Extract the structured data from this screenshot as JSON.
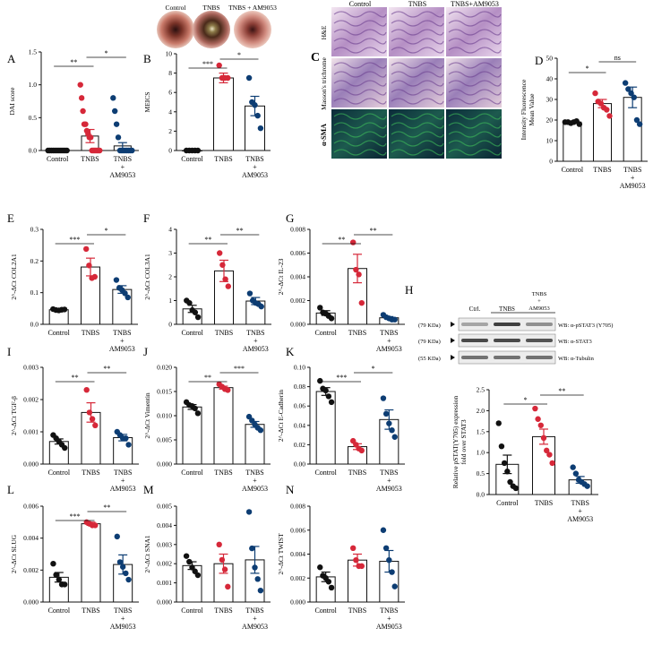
{
  "colors": {
    "control": "#111111",
    "tnbs": "#d62839",
    "am": "#0d3d73",
    "axis": "#111111"
  },
  "endoscopy": {
    "labels": [
      "Control",
      "TNBS",
      "TNBS + AM9053"
    ]
  },
  "histology": {
    "columns": [
      "Control",
      "TNBS",
      "TNBS+AM9053"
    ],
    "rows": [
      "H&E",
      "Masson's trichrome",
      "α-SMA"
    ]
  },
  "western": {
    "panel": "H",
    "lanes": [
      "Ctrl.",
      "TNBS",
      "TNBS\n+\nAM9053"
    ],
    "lane_lines": [
      "TNBS",
      "+",
      "AM9053"
    ],
    "rows": [
      {
        "kda": "(79 KDa)",
        "label": "WB: α-pSTAT3 (Y705)"
      },
      {
        "kda": "(79 KDa)",
        "label": "WB: α-STAT3"
      },
      {
        "kda": "(55 KDa)",
        "label": "WB: α-Tubulin"
      }
    ]
  },
  "chart_data": [
    {
      "id": "A",
      "type": "bar",
      "ylabel": "DAI score",
      "ylim": [
        0,
        1.5
      ],
      "yticks": [
        "0.0",
        "0.5",
        "1.0",
        "1.5"
      ],
      "categories": [
        "Control",
        "TNBS",
        "TNBS\n+\nAM9053"
      ],
      "values": [
        0.0,
        0.22,
        0.07
      ],
      "errors": [
        0.0,
        0.1,
        0.05
      ],
      "points": [
        [
          0,
          0,
          0,
          0,
          0,
          0,
          0,
          0,
          0,
          0,
          0,
          0
        ],
        [
          1.0,
          0.8,
          0.6,
          0.4,
          0.4,
          0.3,
          0.25,
          0.2,
          0.2,
          0.0,
          0.0,
          0.0,
          0.0,
          0.0,
          0.0,
          0.0
        ],
        [
          0.8,
          0.6,
          0.4,
          0.2,
          0.0,
          0.0,
          0.0,
          0.0,
          0.0,
          0.0,
          0.0,
          0.0
        ]
      ],
      "sig": [
        {
          "from": 0,
          "to": 1,
          "label": "**"
        },
        {
          "from": 1,
          "to": 2,
          "label": "*"
        }
      ]
    },
    {
      "id": "B",
      "type": "bar",
      "ylabel": "MEICS",
      "ylim": [
        0,
        10
      ],
      "yticks": [
        "0",
        "2",
        "4",
        "6",
        "8",
        "10"
      ],
      "categories": [
        "Control",
        "TNBS",
        "TNBS\n+\nAM9053"
      ],
      "values": [
        0,
        7.5,
        4.6
      ],
      "errors": [
        0,
        0.5,
        1.0
      ],
      "points": [
        [
          0,
          0,
          0,
          0,
          0
        ],
        [
          8.8,
          7.5,
          7.5,
          7.5
        ],
        [
          7.5,
          5.0,
          4.7,
          3.6,
          2.3
        ]
      ],
      "sig": [
        {
          "from": 0,
          "to": 1,
          "label": "***"
        },
        {
          "from": 1,
          "to": 2,
          "label": "*"
        }
      ]
    },
    {
      "id": "D",
      "type": "bar",
      "ylabel": "Intensity Fluorescence\nMean Value",
      "ylim": [
        0,
        50
      ],
      "yticks": [
        "0",
        "10",
        "20",
        "30",
        "40",
        "50"
      ],
      "categories": [
        "Control",
        "TNBS",
        "TNBS\n+\nAM9053"
      ],
      "values": [
        19,
        28,
        31
      ],
      "errors": [
        0.5,
        2,
        5
      ],
      "points": [
        [
          19,
          19,
          18.5,
          19,
          19.5,
          18
        ],
        [
          33,
          29,
          28,
          26,
          25,
          22
        ],
        [
          38,
          35,
          33,
          31,
          20,
          18
        ]
      ],
      "sig": [
        {
          "from": 0,
          "to": 1,
          "label": "*"
        },
        {
          "from": 1,
          "to": 2,
          "label": "ns"
        }
      ]
    },
    {
      "id": "E",
      "type": "bar",
      "ylabel": "2^-ΔCt COL2A1",
      "ylim": [
        0,
        0.3
      ],
      "yticks": [
        "0.0",
        "0.1",
        "0.2",
        "0.3"
      ],
      "categories": [
        "Control",
        "TNBS",
        "TNBS\n+\nAM9053"
      ],
      "values": [
        0.046,
        0.181,
        0.11
      ],
      "errors": [
        0.002,
        0.028,
        0.012
      ],
      "points": [
        [
          0.048,
          0.045,
          0.044,
          0.046,
          0.047
        ],
        [
          0.238,
          0.186,
          0.146,
          0.15
        ],
        [
          0.14,
          0.115,
          0.108,
          0.098,
          0.085
        ]
      ],
      "sig": [
        {
          "from": 0,
          "to": 1,
          "label": "***"
        },
        {
          "from": 1,
          "to": 2,
          "label": "*"
        }
      ]
    },
    {
      "id": "F",
      "type": "bar",
      "ylabel": "2^-ΔCt COL3A1",
      "ylim": [
        0,
        4
      ],
      "yticks": [
        "0",
        "1",
        "2",
        "3",
        "4"
      ],
      "categories": [
        "Control",
        "TNBS",
        "TNBS\n+\nAM9053"
      ],
      "values": [
        0.65,
        2.25,
        0.98
      ],
      "errors": [
        0.15,
        0.45,
        0.15
      ],
      "points": [
        [
          1.0,
          0.9,
          0.6,
          0.5,
          0.3
        ],
        [
          3.0,
          2.5,
          1.9,
          1.6
        ],
        [
          1.3,
          1.0,
          0.9,
          0.85,
          0.75
        ]
      ],
      "sig": [
        {
          "from": 0,
          "to": 1,
          "label": "**"
        },
        {
          "from": 1,
          "to": 2,
          "label": "**"
        }
      ]
    },
    {
      "id": "G",
      "type": "bar",
      "ylabel": "2^-ΔCt IL-23",
      "ylim": [
        0,
        0.008
      ],
      "yticks": [
        "0.000",
        "0.002",
        "0.004",
        "0.006",
        "0.008"
      ],
      "categories": [
        "Control",
        "TNBS",
        "TNBS\n+\nAM9053"
      ],
      "values": [
        0.00095,
        0.0047,
        0.00055
      ],
      "errors": [
        0.0002,
        0.0012,
        0.0001
      ],
      "points": [
        [
          0.0014,
          0.001,
          0.0009,
          0.0007,
          0.0005
        ],
        [
          0.0069,
          0.0046,
          0.0042,
          0.0018
        ],
        [
          0.0008,
          0.0006,
          0.0005,
          0.0004,
          0.0004
        ]
      ],
      "sig": [
        {
          "from": 0,
          "to": 1,
          "label": "**"
        },
        {
          "from": 1,
          "to": 2,
          "label": "**"
        }
      ]
    },
    {
      "id": "I",
      "type": "bar",
      "ylabel": "2^-ΔCt TGF-β",
      "ylim": [
        0,
        0.003
      ],
      "yticks": [
        "0.000",
        "0.001",
        "0.002",
        "0.003"
      ],
      "categories": [
        "Control",
        "TNBS",
        "TNBS\n+\nAM9053"
      ],
      "values": [
        0.0007,
        0.0016,
        0.00082
      ],
      "errors": [
        8e-05,
        0.0003,
        0.0001
      ],
      "points": [
        [
          0.0009,
          0.0008,
          0.0007,
          0.0006,
          0.0005
        ],
        [
          0.0023,
          0.0016,
          0.0014,
          0.0012
        ],
        [
          0.001,
          0.0009,
          0.0008,
          0.0008,
          0.0006
        ]
      ],
      "sig": [
        {
          "from": 0,
          "to": 1,
          "label": "**"
        },
        {
          "from": 1,
          "to": 2,
          "label": "**"
        }
      ]
    },
    {
      "id": "J",
      "type": "bar",
      "ylabel": "2^-ΔCt Vimentin",
      "ylim": [
        0,
        0.02
      ],
      "yticks": [
        "0.000",
        "0.005",
        "0.010",
        "0.015",
        "0.020"
      ],
      "categories": [
        "Control",
        "TNBS",
        "TNBS\n+\nAM9053"
      ],
      "values": [
        0.0118,
        0.0158,
        0.0082
      ],
      "errors": [
        0.0005,
        0.0003,
        0.0006
      ],
      "points": [
        [
          0.0128,
          0.0122,
          0.012,
          0.0115,
          0.0105
        ],
        [
          0.0165,
          0.016,
          0.0155,
          0.0153
        ],
        [
          0.0098,
          0.009,
          0.0082,
          0.0075,
          0.007
        ]
      ],
      "sig": [
        {
          "from": 0,
          "to": 1,
          "label": "**"
        },
        {
          "from": 1,
          "to": 2,
          "label": "***"
        }
      ]
    },
    {
      "id": "K",
      "type": "bar",
      "ylabel": "2^-ΔCt E-Cadherin",
      "ylim": [
        0,
        0.1
      ],
      "yticks": [
        "0.00",
        "0.02",
        "0.04",
        "0.06",
        "0.08",
        "0.10"
      ],
      "categories": [
        "Control",
        "TNBS",
        "TNBS\n+\nAM9053"
      ],
      "values": [
        0.075,
        0.018,
        0.046
      ],
      "errors": [
        0.004,
        0.003,
        0.01
      ],
      "points": [
        [
          0.086,
          0.078,
          0.076,
          0.07,
          0.064
        ],
        [
          0.024,
          0.02,
          0.016,
          0.014
        ],
        [
          0.068,
          0.052,
          0.042,
          0.035,
          0.028
        ]
      ],
      "sig": [
        {
          "from": 0,
          "to": 1,
          "label": "***"
        },
        {
          "from": 1,
          "to": 2,
          "label": "*"
        }
      ]
    },
    {
      "id": "H",
      "type": "bar",
      "ylabel": "Relative pSTAT(Y705) expression\nfold over STAT3",
      "ylim": [
        0,
        2.5
      ],
      "yticks": [
        "0.0",
        "0.5",
        "1.0",
        "1.5",
        "2.0",
        "2.5"
      ],
      "categories": [
        "Control",
        "TNBS",
        "TNBS\n+\nAM9053"
      ],
      "values": [
        0.72,
        1.38,
        0.35
      ],
      "errors": [
        0.22,
        0.18,
        0.08
      ],
      "points": [
        [
          1.7,
          1.15,
          0.75,
          0.55,
          0.3,
          0.2,
          0.15
        ],
        [
          2.05,
          1.8,
          1.65,
          1.35,
          1.05,
          0.95,
          0.75
        ],
        [
          0.65,
          0.5,
          0.35,
          0.3,
          0.25,
          0.2
        ]
      ],
      "sig": [
        {
          "from": 0,
          "to": 1,
          "label": "*"
        },
        {
          "from": 1,
          "to": 2,
          "label": "**"
        }
      ]
    },
    {
      "id": "L",
      "type": "bar",
      "ylabel": "2^-ΔCt SLUG",
      "ylim": [
        0,
        0.006
      ],
      "yticks": [
        "0.000",
        "0.002",
        "0.004",
        "0.006"
      ],
      "categories": [
        "Control",
        "TNBS",
        "TNBS\n+\nAM9053"
      ],
      "values": [
        0.00155,
        0.0049,
        0.00235
      ],
      "errors": [
        0.0003,
        0.0001,
        0.0006
      ],
      "points": [
        [
          0.0024,
          0.0017,
          0.0014,
          0.0011,
          0.0011
        ],
        [
          0.005,
          0.0049,
          0.0048,
          0.0048
        ],
        [
          0.0041,
          0.0025,
          0.0022,
          0.0018,
          0.0014
        ]
      ],
      "sig": [
        {
          "from": 0,
          "to": 1,
          "label": "***"
        },
        {
          "from": 1,
          "to": 2,
          "label": "**"
        }
      ]
    },
    {
      "id": "M",
      "type": "bar",
      "ylabel": "2^-ΔCt SNA1",
      "ylim": [
        0,
        0.005
      ],
      "yticks": [
        "0.000",
        "0.001",
        "0.002",
        "0.003",
        "0.004",
        "0.005"
      ],
      "categories": [
        "Control",
        "TNBS",
        "TNBS\n+\nAM9053"
      ],
      "values": [
        0.0019,
        0.002,
        0.0022
      ],
      "errors": [
        0.0002,
        0.0005,
        0.0007
      ],
      "points": [
        [
          0.0024,
          0.0021,
          0.0018,
          0.0016,
          0.0014
        ],
        [
          0.003,
          0.0022,
          0.0017,
          0.0008
        ],
        [
          0.0047,
          0.0028,
          0.0018,
          0.0012,
          0.0006
        ]
      ],
      "sig": []
    },
    {
      "id": "N",
      "type": "bar",
      "ylabel": "2^-ΔCt TWIST",
      "ylim": [
        0,
        0.008
      ],
      "yticks": [
        "0.000",
        "0.002",
        "0.004",
        "0.006",
        "0.008"
      ],
      "categories": [
        "Control",
        "TNBS",
        "TNBS\n+\nAM9053"
      ],
      "values": [
        0.0021,
        0.0035,
        0.0034
      ],
      "errors": [
        0.0004,
        0.0005,
        0.0009
      ],
      "points": [
        [
          0.0029,
          0.0022,
          0.002,
          0.0017,
          0.0012
        ],
        [
          0.0045,
          0.0035,
          0.003,
          0.003
        ],
        [
          0.006,
          0.0045,
          0.0035,
          0.0025,
          0.0013
        ]
      ],
      "sig": []
    }
  ]
}
